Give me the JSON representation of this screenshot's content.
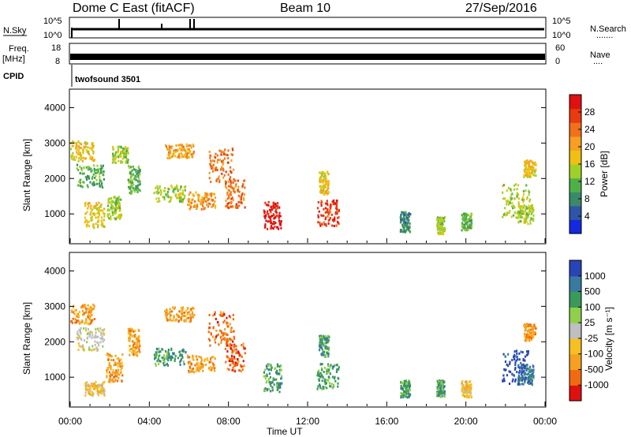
{
  "header": {
    "station": "Dome C East (fitACF)",
    "beam": "Beam 10",
    "date": "27/Sep/2016"
  },
  "nsky_panel": {
    "label": "N.Sky",
    "left_ticks": [
      "10^5",
      "10^0"
    ],
    "right_ticks": [
      "10^5",
      "10^0"
    ],
    "right_label": "N.Search",
    "right_dots": "......."
  },
  "freq_panel": {
    "label_line1": "Freq.",
    "label_line2": "[MHz]",
    "left_ticks": [
      "18",
      "8"
    ],
    "right_ticks": [
      "60",
      "0"
    ],
    "right_label": "Nave",
    "right_dots": "....",
    "cpid_label": "CPID",
    "program": "twofsound 3501"
  },
  "chart_data": [
    {
      "type": "heatmap",
      "name": "power",
      "ylabel": "Slant Range [km]",
      "xlabel": "Time UT",
      "yticks": [
        "1000",
        "2000",
        "3000",
        "4000"
      ],
      "ylim": [
        180,
        4500
      ],
      "colorbar_label": "Power [dB]",
      "colorbar_ticks": [
        "4",
        "8",
        "12",
        "16",
        "20",
        "24",
        "28"
      ],
      "colorbar_colors": [
        "#1428e0",
        "#2f55a8",
        "#3a8a6a",
        "#4fb04a",
        "#9fd028",
        "#f0c010",
        "#f5a020",
        "#f27018",
        "#ea3a10",
        "#e01010"
      ],
      "clusters": [
        {
          "t": 0.6,
          "r": 2800,
          "w": 1.2,
          "h": 350,
          "c": 5
        },
        {
          "t": 1.0,
          "r": 2100,
          "w": 1.4,
          "h": 400,
          "c": 3
        },
        {
          "t": 1.2,
          "r": 1000,
          "w": 1.0,
          "h": 450,
          "c": 5
        },
        {
          "t": 2.5,
          "r": 2700,
          "w": 0.8,
          "h": 300,
          "c": 4
        },
        {
          "t": 2.2,
          "r": 1200,
          "w": 0.7,
          "h": 400,
          "c": 4
        },
        {
          "t": 3.2,
          "r": 2000,
          "w": 0.6,
          "h": 500,
          "c": 3
        },
        {
          "t": 5.0,
          "r": 1600,
          "w": 1.6,
          "h": 300,
          "c": 4
        },
        {
          "t": 5.5,
          "r": 2800,
          "w": 1.5,
          "h": 250,
          "c": 6
        },
        {
          "t": 6.6,
          "r": 1400,
          "w": 1.4,
          "h": 300,
          "c": 6
        },
        {
          "t": 7.6,
          "r": 2400,
          "w": 1.3,
          "h": 600,
          "c": 7
        },
        {
          "t": 8.3,
          "r": 1600,
          "w": 1.0,
          "h": 500,
          "c": 7
        },
        {
          "t": 10.2,
          "r": 1000,
          "w": 0.9,
          "h": 500,
          "c": 9
        },
        {
          "t": 13.0,
          "r": 1050,
          "w": 1.1,
          "h": 450,
          "c": 8
        },
        {
          "t": 12.8,
          "r": 1900,
          "w": 0.5,
          "h": 400,
          "c": 5
        },
        {
          "t": 16.9,
          "r": 800,
          "w": 0.5,
          "h": 350,
          "c": 2
        },
        {
          "t": 18.7,
          "r": 700,
          "w": 0.4,
          "h": 300,
          "c": 4
        },
        {
          "t": 20.0,
          "r": 800,
          "w": 0.5,
          "h": 300,
          "c": 3
        },
        {
          "t": 22.5,
          "r": 1400,
          "w": 1.4,
          "h": 600,
          "c": 4
        },
        {
          "t": 23.2,
          "r": 2300,
          "w": 0.6,
          "h": 300,
          "c": 5
        },
        {
          "t": 23.0,
          "r": 1000,
          "w": 0.8,
          "h": 350,
          "c": 4
        }
      ]
    },
    {
      "type": "heatmap",
      "name": "velocity",
      "ylabel": "Slant Range [km]",
      "xlabel": "Time UT",
      "yticks": [
        "1000",
        "2000",
        "3000",
        "4000"
      ],
      "ylim": [
        180,
        4500
      ],
      "xticks": [
        "00:00",
        "04:00",
        "08:00",
        "12:00",
        "16:00",
        "20:00",
        "00:00"
      ],
      "colorbar_label": "Velocity [m s⁻¹]",
      "colorbar_ticks": [
        "-1000",
        "-500",
        "-100",
        "-25",
        "25",
        "100",
        "500",
        "1000"
      ],
      "colorbar_colors": [
        "#e01010",
        "#f26a10",
        "#f5a020",
        "#f5c020",
        "#bfbfbf",
        "#8fd04a",
        "#3a9a5a",
        "#3a7aa0",
        "#2845b8"
      ],
      "clusters": [
        {
          "t": 0.6,
          "r": 2800,
          "w": 1.2,
          "h": 350,
          "c": 2
        },
        {
          "t": 1.0,
          "r": 2100,
          "w": 1.4,
          "h": 400,
          "c": 4
        },
        {
          "t": 1.2,
          "r": 700,
          "w": 1.0,
          "h": 250,
          "c": 3
        },
        {
          "t": 2.2,
          "r": 1300,
          "w": 0.8,
          "h": 500,
          "c": 2
        },
        {
          "t": 3.2,
          "r": 2000,
          "w": 0.6,
          "h": 500,
          "c": 2
        },
        {
          "t": 5.0,
          "r": 1600,
          "w": 1.6,
          "h": 300,
          "c": 6
        },
        {
          "t": 5.5,
          "r": 2800,
          "w": 1.5,
          "h": 250,
          "c": 2
        },
        {
          "t": 6.6,
          "r": 1400,
          "w": 1.4,
          "h": 300,
          "c": 2
        },
        {
          "t": 7.6,
          "r": 2400,
          "w": 1.3,
          "h": 600,
          "c": 1
        },
        {
          "t": 8.3,
          "r": 1600,
          "w": 1.0,
          "h": 500,
          "c": 1
        },
        {
          "t": 10.2,
          "r": 1000,
          "w": 0.9,
          "h": 500,
          "c": 6
        },
        {
          "t": 13.0,
          "r": 1050,
          "w": 1.1,
          "h": 450,
          "c": 6
        },
        {
          "t": 12.8,
          "r": 1900,
          "w": 0.5,
          "h": 400,
          "c": 6
        },
        {
          "t": 16.9,
          "r": 700,
          "w": 0.5,
          "h": 300,
          "c": 6
        },
        {
          "t": 18.7,
          "r": 700,
          "w": 0.4,
          "h": 300,
          "c": 6
        },
        {
          "t": 20.0,
          "r": 700,
          "w": 0.5,
          "h": 300,
          "c": 3
        },
        {
          "t": 22.5,
          "r": 1300,
          "w": 1.4,
          "h": 600,
          "c": 8
        },
        {
          "t": 23.2,
          "r": 2300,
          "w": 0.6,
          "h": 300,
          "c": 2
        },
        {
          "t": 23.0,
          "r": 1100,
          "w": 0.8,
          "h": 350,
          "c": 7
        }
      ]
    }
  ]
}
